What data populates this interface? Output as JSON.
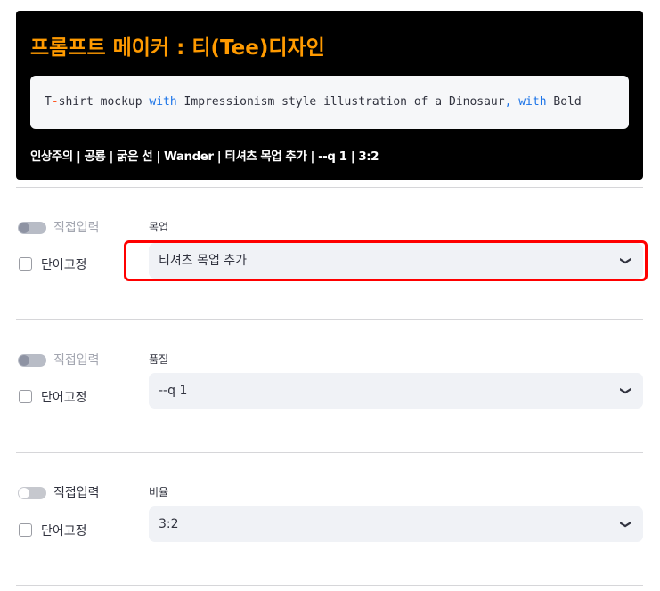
{
  "header": {
    "title": "프롬프트 메이커 : 티(Tee)디자인",
    "prompt_parts": [
      "T",
      "-",
      "shirt mockup ",
      "with",
      " Impressionism style illustration of a Dinosaur",
      ",",
      " ",
      "with",
      " Bold"
    ],
    "summary": "인상주의 | 공룡 | 굵은 선 | Wander | 티셔츠 목업 추가 | --q 1 | 3:2"
  },
  "sections": [
    {
      "toggle_label": "직접입력",
      "toggle_on": false,
      "toggle_disabled": true,
      "checkbox_label": "단어고정",
      "checked": false,
      "field_label": "목업",
      "value": "티셔츠 목업 추가",
      "highlighted": true
    },
    {
      "toggle_label": "직접입력",
      "toggle_on": false,
      "toggle_disabled": true,
      "checkbox_label": "단어고정",
      "checked": false,
      "field_label": "품질",
      "value": "--q 1",
      "highlighted": false
    },
    {
      "toggle_label": "직접입력",
      "toggle_on": false,
      "toggle_disabled": false,
      "checkbox_label": "단어고정",
      "checked": false,
      "field_label": "비율",
      "value": "3:2",
      "highlighted": false
    }
  ],
  "colors": {
    "title": "#ff9a00",
    "keyword": "#1a73e8",
    "highlight": "#ff0000"
  },
  "icons": {
    "select": "chevron-down-icon"
  }
}
